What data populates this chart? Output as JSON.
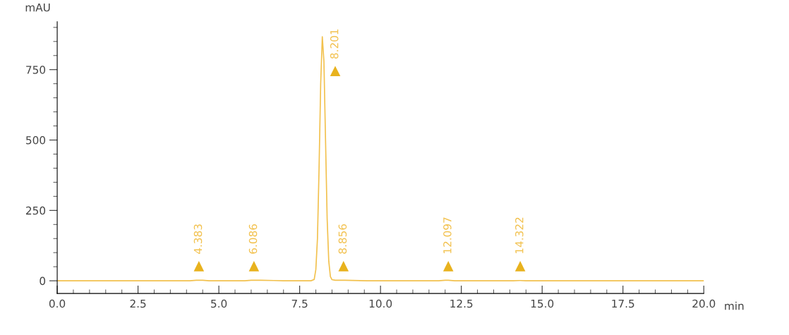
{
  "chart_data": {
    "type": "line",
    "xlabel": "min",
    "ylabel": "mAU",
    "series": [
      {
        "color": "#f2c14e",
        "x": [
          0,
          4.1,
          4.3,
          4.383,
          4.5,
          4.7,
          5.8,
          6.0,
          6.086,
          6.3,
          6.7,
          7.0,
          7.85,
          7.95,
          8.0,
          8.05,
          8.1,
          8.15,
          8.2,
          8.25,
          8.3,
          8.35,
          8.4,
          8.45,
          8.5,
          8.6,
          8.9,
          9.6,
          11.8,
          12.0,
          12.097,
          12.3,
          14.1,
          14.3,
          14.322,
          14.5,
          20
        ],
        "values": [
          0,
          0,
          2,
          2,
          2,
          0,
          0,
          2,
          2,
          2,
          1,
          0,
          0,
          5,
          40,
          150,
          400,
          700,
          867,
          780,
          500,
          220,
          70,
          15,
          4,
          2,
          2,
          0,
          0,
          2,
          2,
          0,
          0,
          1,
          1,
          0,
          0
        ]
      },
      {
        "type": "scatter",
        "color": "#e8b21e",
        "marker": "triangle",
        "x": [
          4.383,
          6.086,
          8.6,
          8.856,
          12.097,
          14.322
        ],
        "values": [
          52,
          52,
          745,
          52,
          52,
          52
        ]
      }
    ],
    "annotations": [
      {
        "text": "4.383",
        "x": 4.383,
        "y": 52
      },
      {
        "text": "6.086",
        "x": 6.086,
        "y": 52
      },
      {
        "text": "8.201",
        "x": 8.6,
        "y": 745
      },
      {
        "text": "8.856",
        "x": 8.856,
        "y": 52
      },
      {
        "text": "12.097",
        "x": 12.097,
        "y": 52
      },
      {
        "text": "14.322",
        "x": 14.322,
        "y": 52
      }
    ],
    "xlim": [
      0,
      20
    ],
    "ylim": [
      -45,
      920
    ],
    "xticks": [
      {
        "value": 0,
        "label": "0.0"
      },
      {
        "value": 0.5,
        "label": null
      },
      {
        "value": 1,
        "label": null
      },
      {
        "value": 1.5,
        "label": null
      },
      {
        "value": 2,
        "label": null
      },
      {
        "value": 2.5,
        "label": "2.5"
      },
      {
        "value": 3,
        "label": null
      },
      {
        "value": 3.5,
        "label": null
      },
      {
        "value": 4,
        "label": null
      },
      {
        "value": 4.5,
        "label": null
      },
      {
        "value": 5,
        "label": "5.0"
      },
      {
        "value": 5.5,
        "label": null
      },
      {
        "value": 6,
        "label": null
      },
      {
        "value": 6.5,
        "label": null
      },
      {
        "value": 7,
        "label": null
      },
      {
        "value": 7.5,
        "label": "7.5"
      },
      {
        "value": 8,
        "label": null
      },
      {
        "value": 8.5,
        "label": null
      },
      {
        "value": 9,
        "label": null
      },
      {
        "value": 9.5,
        "label": null
      },
      {
        "value": 10,
        "label": "10.0"
      },
      {
        "value": 10.5,
        "label": null
      },
      {
        "value": 11,
        "label": null
      },
      {
        "value": 11.5,
        "label": null
      },
      {
        "value": 12,
        "label": null
      },
      {
        "value": 12.5,
        "label": "12.5"
      },
      {
        "value": 13,
        "label": null
      },
      {
        "value": 13.5,
        "label": null
      },
      {
        "value": 14,
        "label": null
      },
      {
        "value": 14.5,
        "label": null
      },
      {
        "value": 15,
        "label": "15.0"
      },
      {
        "value": 15.5,
        "label": null
      },
      {
        "value": 16,
        "label": null
      },
      {
        "value": 16.5,
        "label": null
      },
      {
        "value": 17,
        "label": null
      },
      {
        "value": 17.5,
        "label": "17.5"
      },
      {
        "value": 18,
        "label": null
      },
      {
        "value": 18.5,
        "label": null
      },
      {
        "value": 19,
        "label": null
      },
      {
        "value": 19.5,
        "label": null
      },
      {
        "value": 20,
        "label": "20.0"
      }
    ],
    "yticks": [
      0,
      {
        "value": 50,
        "label": null
      },
      {
        "value": 100,
        "label": null
      },
      {
        "value": 150,
        "label": null
      },
      {
        "value": 200,
        "label": null
      },
      250,
      {
        "value": 300,
        "label": null
      },
      {
        "value": 350,
        "label": null
      },
      {
        "value": 400,
        "label": null
      },
      {
        "value": 450,
        "label": null
      },
      500,
      {
        "value": 550,
        "label": null
      },
      {
        "value": 600,
        "label": null
      },
      {
        "value": 650,
        "label": null
      },
      {
        "value": 700,
        "label": null
      },
      750,
      {
        "value": 800,
        "label": null
      },
      {
        "value": 850,
        "label": null
      },
      {
        "value": 900,
        "label": null
      }
    ],
    "grid": false,
    "legend": false
  }
}
